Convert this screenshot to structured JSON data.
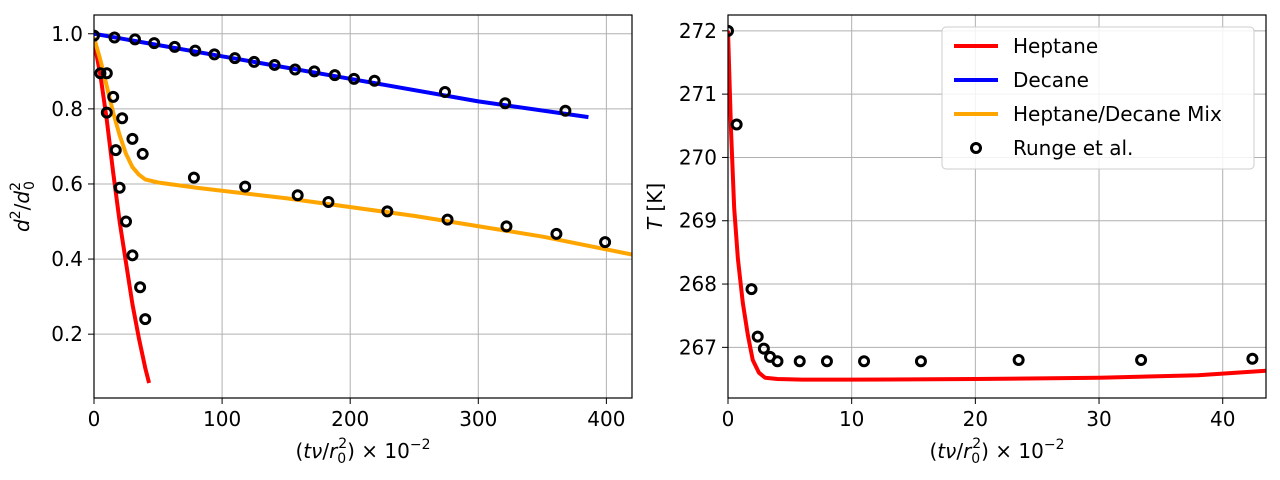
{
  "chart_data": [
    {
      "type": "line",
      "xlabel": "(tν/r0²) × 10⁻²",
      "ylabel": "d²/d0²",
      "xlim": [
        0,
        420
      ],
      "ylim": [
        0.03,
        1.05
      ],
      "xticks": [
        0,
        100,
        200,
        300,
        400
      ],
      "yticks": [
        0.2,
        0.4,
        0.6,
        0.8,
        1.0
      ],
      "xtick_labels": [
        "0",
        "100",
        "200",
        "300",
        "400"
      ],
      "ytick_labels": [
        "0.2",
        "0.4",
        "0.6",
        "0.8",
        "1.0"
      ],
      "grid": true,
      "series": [
        {
          "name": "Heptane",
          "kind": "line",
          "color": "#ff0000",
          "points": [
            [
              0,
              0.98
            ],
            [
              5,
              0.89
            ],
            [
              10,
              0.77
            ],
            [
              15,
              0.63
            ],
            [
              20,
              0.5
            ],
            [
              25,
              0.39
            ],
            [
              30,
              0.28
            ],
            [
              35,
              0.19
            ],
            [
              40,
              0.11
            ],
            [
              43,
              0.07
            ]
          ]
        },
        {
          "name": "Decane",
          "kind": "line",
          "color": "#0000ff",
          "points": [
            [
              0,
              1.0
            ],
            [
              100,
              0.94
            ],
            [
              200,
              0.88
            ],
            [
              300,
              0.82
            ],
            [
              386,
              0.778
            ]
          ]
        },
        {
          "name": "Heptane/Decane Mix",
          "kind": "line",
          "color": "#ffa500",
          "points": [
            [
              0,
              0.99
            ],
            [
              5,
              0.93
            ],
            [
              10,
              0.86
            ],
            [
              15,
              0.79
            ],
            [
              20,
              0.73
            ],
            [
              25,
              0.68
            ],
            [
              30,
              0.645
            ],
            [
              35,
              0.625
            ],
            [
              40,
              0.612
            ],
            [
              50,
              0.604
            ],
            [
              80,
              0.59
            ],
            [
              150,
              0.562
            ],
            [
              250,
              0.515
            ],
            [
              350,
              0.46
            ],
            [
              420,
              0.412
            ]
          ]
        },
        {
          "name": "Runge et al.",
          "kind": "scatter",
          "color": "#000000",
          "points": [
            [
              0,
              0.995
            ],
            [
              5,
              0.895
            ],
            [
              10,
              0.895
            ],
            [
              15,
              0.832
            ],
            [
              17,
              0.69
            ],
            [
              20,
              0.59
            ],
            [
              22,
              0.775
            ],
            [
              25,
              0.5
            ],
            [
              30,
              0.41
            ],
            [
              30,
              0.72
            ],
            [
              36,
              0.325
            ],
            [
              38,
              0.68
            ],
            [
              40,
              0.24
            ],
            [
              10,
              0.79
            ],
            [
              16,
              0.99
            ],
            [
              32,
              0.985
            ],
            [
              47,
              0.975
            ],
            [
              63,
              0.965
            ],
            [
              79,
              0.955
            ],
            [
              94,
              0.945
            ],
            [
              110,
              0.935
            ],
            [
              125,
              0.925
            ],
            [
              141,
              0.917
            ],
            [
              157,
              0.905
            ],
            [
              172,
              0.9
            ],
            [
              188,
              0.89
            ],
            [
              203,
              0.88
            ],
            [
              219,
              0.875
            ],
            [
              274,
              0.845
            ],
            [
              321,
              0.815
            ],
            [
              368,
              0.795
            ],
            [
              78,
              0.617
            ],
            [
              118,
              0.593
            ],
            [
              159,
              0.57
            ],
            [
              183,
              0.552
            ],
            [
              229,
              0.527
            ],
            [
              276,
              0.505
            ],
            [
              322,
              0.487
            ],
            [
              361,
              0.467
            ],
            [
              399,
              0.445
            ]
          ]
        }
      ]
    },
    {
      "type": "line",
      "xlabel": "(tν/r0²) × 10⁻²",
      "ylabel": "T [K]",
      "xlim": [
        0,
        43.5
      ],
      "ylim": [
        266.2,
        272.25
      ],
      "xticks": [
        0,
        10,
        20,
        30,
        40
      ],
      "yticks": [
        267,
        268,
        269,
        270,
        271,
        272
      ],
      "xtick_labels": [
        "0",
        "10",
        "20",
        "30",
        "40"
      ],
      "ytick_labels": [
        "267",
        "268",
        "269",
        "270",
        "271",
        "272"
      ],
      "grid": true,
      "legend": {
        "placement": "upper-right",
        "entries": [
          {
            "name": "Heptane",
            "color": "#ff0000",
            "kind": "line"
          },
          {
            "name": "Decane",
            "color": "#0000ff",
            "kind": "line"
          },
          {
            "name": "Heptane/Decane Mix",
            "color": "#ffa500",
            "kind": "line"
          },
          {
            "name": "Runge et al.",
            "color": "#000000",
            "kind": "marker"
          }
        ]
      },
      "series": [
        {
          "name": "Heptane",
          "kind": "line",
          "color": "#ff0000",
          "points": [
            [
              0,
              272.0
            ],
            [
              0.25,
              270.4
            ],
            [
              0.5,
              269.2
            ],
            [
              0.8,
              268.4
            ],
            [
              1.2,
              267.7
            ],
            [
              1.6,
              267.2
            ],
            [
              2.0,
              266.8
            ],
            [
              2.5,
              266.6
            ],
            [
              3.0,
              266.52
            ],
            [
              4.0,
              266.5
            ],
            [
              6,
              266.49
            ],
            [
              10,
              266.49
            ],
            [
              20,
              266.5
            ],
            [
              30,
              266.52
            ],
            [
              38,
              266.56
            ],
            [
              43.5,
              266.63
            ]
          ]
        },
        {
          "name": "Runge et al.",
          "kind": "scatter",
          "color": "#000000",
          "points": [
            [
              0,
              272.0
            ],
            [
              0.7,
              270.52
            ],
            [
              1.9,
              267.92
            ],
            [
              2.4,
              267.17
            ],
            [
              2.9,
              266.98
            ],
            [
              3.4,
              266.85
            ],
            [
              4.0,
              266.78
            ],
            [
              5.8,
              266.78
            ],
            [
              8.0,
              266.78
            ],
            [
              11.0,
              266.78
            ],
            [
              15.6,
              266.78
            ],
            [
              23.5,
              266.8
            ],
            [
              33.4,
              266.8
            ],
            [
              42.4,
              266.82
            ]
          ]
        }
      ]
    }
  ]
}
